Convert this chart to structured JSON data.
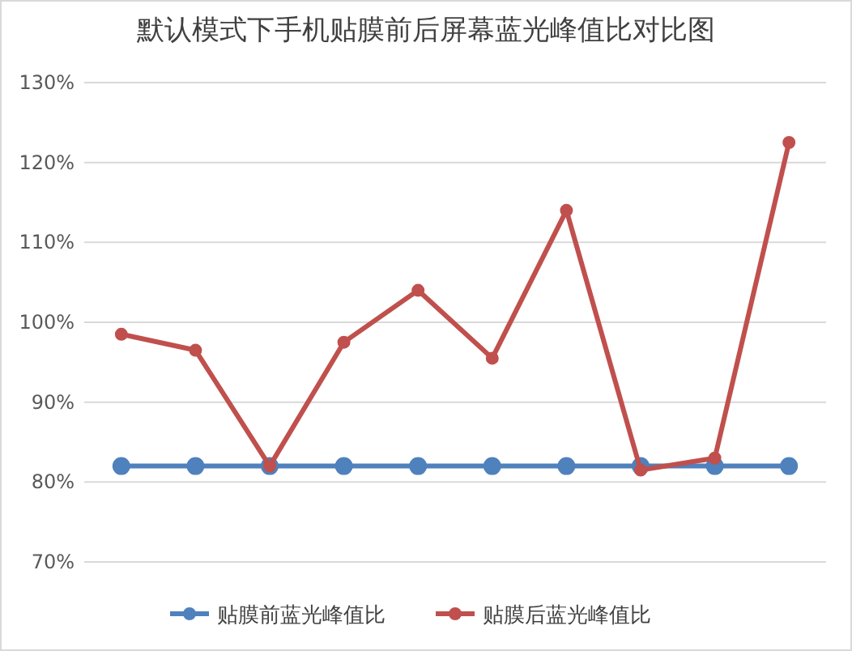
{
  "chart_data": {
    "type": "line",
    "title": "默认模式下手机贴膜前后屏幕蓝光峰值比对比图",
    "categories": [
      null,
      null,
      null,
      null,
      null,
      null,
      null,
      null,
      null,
      null
    ],
    "series": [
      {
        "name": "贴膜前蓝光峰值比",
        "color": "#4f81bd",
        "values": [
          82,
          82,
          82,
          82,
          82,
          82,
          82,
          82,
          82,
          82
        ]
      },
      {
        "name": "贴膜后蓝光峰值比",
        "color": "#c0504d",
        "values": [
          98.5,
          96.5,
          82,
          97.5,
          104,
          95.5,
          114,
          81.5,
          83,
          122.5
        ]
      }
    ],
    "ylim": [
      70,
      130
    ],
    "yticks": [
      {
        "value": 70,
        "label": "70%"
      },
      {
        "value": 80,
        "label": "80%"
      },
      {
        "value": 90,
        "label": "90%"
      },
      {
        "value": 100,
        "label": "100%"
      },
      {
        "value": 110,
        "label": "110%"
      },
      {
        "value": 120,
        "label": "120%"
      },
      {
        "value": 130,
        "label": "130%"
      }
    ],
    "grid": "y",
    "legend": "bottom",
    "marker": "circle",
    "tick_labels": "y"
  }
}
